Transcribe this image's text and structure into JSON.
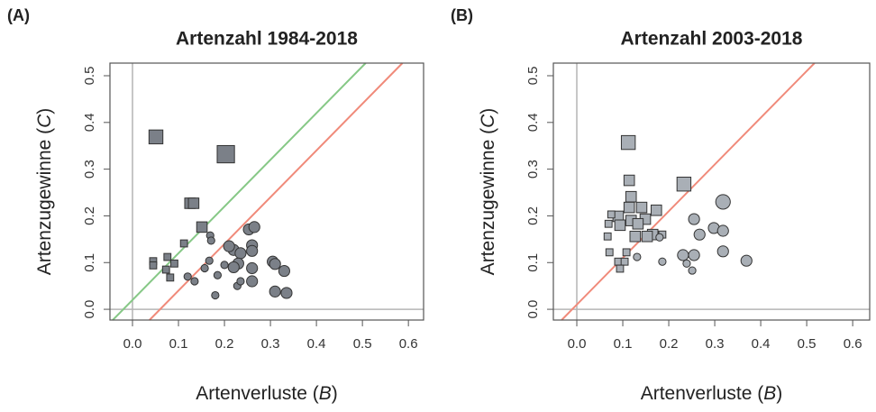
{
  "chart_data": [
    {
      "type": "scatter",
      "panel": "(A)",
      "title": "Artenzahl 1984-2018",
      "xlabel_parts": [
        "Artenverluste (",
        "B",
        ")"
      ],
      "ylabel_parts": [
        "Artenzugewinne (",
        "C",
        ")"
      ],
      "xlim": [
        -0.049,
        0.633
      ],
      "ylim": [
        -0.023,
        0.527
      ],
      "xticks": [
        {
          "value": 0,
          "label": "0.0"
        },
        0.1,
        0.2,
        0.3,
        0.4,
        0.5,
        0.6
      ],
      "yticks": [
        {
          "value": 0,
          "label": "0.0"
        },
        0.1,
        0.2,
        0.3,
        0.4,
        0.5
      ],
      "zero_lines": {
        "color": "#b4b4b4",
        "x": 0,
        "y": 0
      },
      "lines": [
        {
          "color": "#86c886",
          "x": [
            -0.043,
            0.507
          ],
          "y": [
            -0.023,
            0.527
          ]
        },
        {
          "color": "#f08a7a",
          "x": [
            0.037,
            0.587
          ],
          "y": [
            -0.023,
            0.527
          ]
        }
      ],
      "series": [
        {
          "marker": "square",
          "color": "#7b8088",
          "x": [
            0.051,
            0.203,
            0.125,
            0.133,
            0.151,
            0.112,
            0.045,
            0.045,
            0.076,
            0.091,
            0.073,
            0.082
          ],
          "y": [
            0.369,
            0.332,
            0.227,
            0.227,
            0.176,
            0.141,
            0.103,
            0.094,
            0.112,
            0.098,
            0.085,
            0.068
          ],
          "sizes": [
            3,
            4,
            2,
            2,
            2,
            1,
            1,
            1,
            1,
            1,
            1,
            1
          ]
        },
        {
          "marker": "circle",
          "color": "#7b8088",
          "x": [
            0.169,
            0.171,
            0.22,
            0.21,
            0.235,
            0.253,
            0.265,
            0.26,
            0.26,
            0.23,
            0.22,
            0.228,
            0.235,
            0.26,
            0.26,
            0.305,
            0.31,
            0.33,
            0.31,
            0.335,
            0.167,
            0.157,
            0.185,
            0.2,
            0.18,
            0.12,
            0.135
          ],
          "y": [
            0.158,
            0.147,
            0.127,
            0.135,
            0.12,
            0.171,
            0.176,
            0.137,
            0.125,
            0.098,
            0.09,
            0.05,
            0.06,
            0.088,
            0.06,
            0.102,
            0.097,
            0.082,
            0.038,
            0.035,
            0.104,
            0.088,
            0.073,
            0.095,
            0.03,
            0.07,
            0.06
          ],
          "sizes": [
            1,
            1,
            2,
            2,
            2,
            2,
            2,
            2,
            2,
            2,
            2,
            1,
            1,
            2,
            2,
            2,
            2,
            2,
            2,
            2,
            1,
            1,
            1,
            1,
            1,
            1,
            1
          ]
        }
      ]
    },
    {
      "type": "scatter",
      "panel": "(B)",
      "title": "Artenzahl 2003-2018",
      "xlabel_parts": [
        "Artenverluste (",
        "B",
        ")"
      ],
      "ylabel_parts": [
        "Artenzugewinne (",
        "C",
        ")"
      ],
      "xlim": [
        -0.051,
        0.637
      ],
      "ylim": [
        -0.023,
        0.527
      ],
      "xticks": [
        {
          "value": 0,
          "label": "0.0"
        },
        0.1,
        0.2,
        0.3,
        0.4,
        0.5,
        0.6
      ],
      "yticks": [
        {
          "value": 0,
          "label": "0.0"
        },
        0.1,
        0.2,
        0.3,
        0.4,
        0.5
      ],
      "zero_lines": {
        "color": "#b4b4b4",
        "x": 0,
        "y": 0
      },
      "lines": [
        {
          "color": "#f08a7a",
          "x": [
            -0.033,
            0.517
          ],
          "y": [
            -0.023,
            0.527
          ]
        }
      ],
      "series": [
        {
          "marker": "square",
          "color": "#a9afb6",
          "x": [
            0.112,
            0.114,
            0.233,
            0.118,
            0.114,
            0.09,
            0.075,
            0.069,
            0.094,
            0.118,
            0.141,
            0.149,
            0.173,
            0.165,
            0.186,
            0.133,
            0.153,
            0.127,
            0.067,
            0.071,
            0.108,
            0.09,
            0.104,
            0.094
          ],
          "y": [
            0.357,
            0.276,
            0.268,
            0.241,
            0.218,
            0.199,
            0.203,
            0.183,
            0.18,
            0.19,
            0.218,
            0.193,
            0.212,
            0.16,
            0.16,
            0.183,
            0.156,
            0.156,
            0.156,
            0.122,
            0.122,
            0.102,
            0.102,
            0.087
          ],
          "sizes": [
            3,
            2,
            3,
            2,
            2,
            2,
            1,
            1,
            2,
            2,
            2,
            2,
            2,
            2,
            1,
            2,
            2,
            2,
            1,
            1,
            1,
            1,
            1,
            1
          ]
        },
        {
          "marker": "circle",
          "color": "#a9afb6",
          "x": [
            0.318,
            0.255,
            0.298,
            0.318,
            0.267,
            0.231,
            0.255,
            0.318,
            0.369,
            0.239,
            0.251,
            0.186,
            0.131,
            0.18
          ],
          "y": [
            0.23,
            0.193,
            0.174,
            0.168,
            0.16,
            0.116,
            0.116,
            0.124,
            0.104,
            0.098,
            0.083,
            0.102,
            0.112,
            0.154
          ],
          "sizes": [
            3,
            2,
            2,
            2,
            2,
            2,
            2,
            2,
            2,
            1,
            1,
            1,
            1,
            1
          ]
        }
      ]
    }
  ]
}
